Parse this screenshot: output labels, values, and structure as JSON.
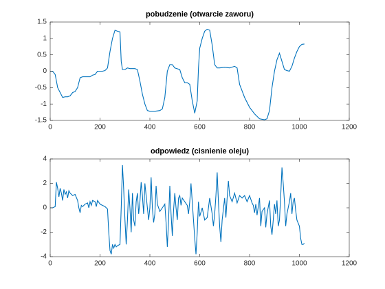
{
  "chart_data": [
    {
      "type": "line",
      "title": "pobudzenie (otwarcie zaworu)",
      "color": "#0072bd",
      "xlim": [
        0,
        1200
      ],
      "ylim": [
        -1.5,
        1.5
      ],
      "xticks": [
        0,
        200,
        400,
        600,
        800,
        1000,
        1200
      ],
      "yticks": [
        -1.5,
        -1,
        -0.5,
        0,
        0.5,
        1,
        1.5
      ],
      "x": [
        0,
        10,
        20,
        30,
        40,
        50,
        60,
        70,
        80,
        90,
        100,
        110,
        120,
        130,
        140,
        160,
        170,
        180,
        190,
        200,
        210,
        220,
        230,
        240,
        250,
        260,
        270,
        280,
        285,
        290,
        300,
        310,
        320,
        340,
        350,
        360,
        370,
        380,
        390,
        400,
        420,
        440,
        450,
        460,
        470,
        480,
        490,
        500,
        520,
        530,
        540,
        550,
        560,
        570,
        580,
        590,
        595,
        600,
        610,
        620,
        630,
        640,
        650,
        660,
        670,
        680,
        700,
        720,
        740,
        750,
        760,
        780,
        800,
        820,
        840,
        860,
        870,
        880,
        890,
        900,
        910,
        920,
        930,
        940,
        950,
        960,
        970,
        980,
        990,
        1000,
        1010,
        1020
      ],
      "values": [
        0,
        0,
        -0.1,
        -0.5,
        -0.65,
        -0.8,
        -0.78,
        -0.78,
        -0.75,
        -0.65,
        -0.62,
        -0.5,
        -0.2,
        -0.17,
        -0.17,
        -0.17,
        -0.12,
        -0.1,
        0,
        0,
        0,
        0.02,
        0.1,
        0.6,
        1,
        1.25,
        1.22,
        1.2,
        0.3,
        0.05,
        0.05,
        0.1,
        0.08,
        0.08,
        0.05,
        -0.3,
        -0.7,
        -1,
        -1.2,
        -1.22,
        -1.22,
        -1.2,
        -1.15,
        -0.8,
        0,
        0.2,
        0.2,
        0.1,
        0.05,
        -0.2,
        -0.35,
        -0.35,
        -0.4,
        -0.9,
        -1.28,
        -0.9,
        0.1,
        0.7,
        1,
        1.22,
        1.28,
        1.25,
        0.8,
        0.2,
        0.1,
        0.1,
        0.12,
        0.1,
        0.15,
        0.1,
        -0.4,
        -0.8,
        -1.1,
        -1.3,
        -1.45,
        -1.48,
        -1.45,
        -1.2,
        -0.5,
        0,
        0.35,
        0.55,
        0.3,
        0.05,
        0.02,
        0,
        0.15,
        0.4,
        0.6,
        0.75,
        0.82,
        0.83
      ]
    },
    {
      "type": "line",
      "title": "odpowiedz (cisnienie oleju)",
      "color": "#0072bd",
      "xlim": [
        0,
        1200
      ],
      "ylim": [
        -4,
        4
      ],
      "xticks": [
        0,
        200,
        400,
        600,
        800,
        1000,
        1200
      ],
      "yticks": [
        -4,
        -2,
        0,
        2,
        4
      ],
      "x": [
        0,
        10,
        20,
        25,
        30,
        35,
        40,
        45,
        50,
        55,
        60,
        65,
        70,
        75,
        80,
        90,
        100,
        110,
        115,
        120,
        125,
        130,
        140,
        150,
        155,
        160,
        165,
        170,
        180,
        185,
        190,
        200,
        210,
        220,
        230,
        235,
        240,
        245,
        250,
        255,
        260,
        265,
        270,
        280,
        285,
        290,
        295,
        300,
        305,
        310,
        315,
        320,
        325,
        330,
        335,
        340,
        345,
        350,
        355,
        360,
        365,
        370,
        375,
        380,
        385,
        390,
        395,
        400,
        405,
        410,
        415,
        420,
        425,
        430,
        440,
        450,
        460,
        465,
        470,
        475,
        480,
        485,
        490,
        495,
        500,
        505,
        510,
        515,
        520,
        525,
        530,
        540,
        550,
        555,
        560,
        565,
        570,
        580,
        585,
        590,
        595,
        600,
        610,
        620,
        630,
        640,
        650,
        655,
        660,
        665,
        670,
        675,
        680,
        685,
        690,
        700,
        705,
        710,
        715,
        720,
        730,
        740,
        750,
        760,
        770,
        780,
        790,
        800,
        810,
        815,
        820,
        825,
        830,
        840,
        845,
        850,
        860,
        865,
        870,
        880,
        885,
        890,
        895,
        900,
        905,
        910,
        915,
        920,
        925,
        930,
        935,
        940,
        945,
        950,
        960,
        965,
        970,
        975,
        980,
        985,
        990,
        1000,
        1005,
        1010,
        1015,
        1020
      ],
      "values": [
        0,
        0,
        0.1,
        2.1,
        1.6,
        0.9,
        1.6,
        1.2,
        0.6,
        1.5,
        1.1,
        1.3,
        0.8,
        1.4,
        1.2,
        1,
        1.1,
        0.6,
        0,
        -0.4,
        0.2,
        0.1,
        0.3,
        0.4,
        0,
        0.5,
        0.2,
        0.6,
        0.5,
        0.1,
        0.6,
        0.3,
        0.2,
        0.1,
        -0.1,
        -2,
        -3.5,
        -3.8,
        -3,
        -3.3,
        -3,
        -3.2,
        -3.1,
        -3,
        0,
        3.5,
        1.5,
        -1,
        -3,
        -1,
        1.5,
        0,
        -2,
        1.2,
        -1,
        -1.5,
        0.5,
        1.2,
        -0.5,
        0.5,
        2.1,
        1,
        -0.5,
        2,
        1,
        0,
        -1,
        0,
        2.5,
        0,
        -1.2,
        -0.5,
        1.8,
        0.3,
        -0.3,
        0,
        0.3,
        -1.2,
        -3.2,
        -1,
        1.8,
        -0.5,
        -2.3,
        -0.2,
        1.2,
        0,
        -1,
        0.8,
        1,
        0.2,
        0.8,
        0.5,
        0.2,
        -0.5,
        0.5,
        2,
        0.5,
        -2.5,
        -3.8,
        -2,
        0.5,
        -0.7,
        0,
        -1,
        -0.8,
        0.8,
        -0.5,
        -1.5,
        -0.5,
        1,
        2.9,
        0.5,
        -1.5,
        -2.8,
        -1,
        0.8,
        -0.8,
        0.8,
        2.2,
        1,
        0.5,
        1.2,
        0.4,
        1,
        0.8,
        1,
        0.5,
        1,
        0.4,
        0.2,
        -0.4,
        0.3,
        -0.6,
        0.8,
        -1.5,
        -0.3,
        0,
        -1.6,
        -0.5,
        0.6,
        -1.5,
        -2.2,
        -1,
        0.3,
        -0.5,
        0.6,
        -1.5,
        -1,
        1,
        3.3,
        2,
        0.5,
        -1.5,
        -0.5,
        0.5,
        1.2,
        -0.5,
        0.5,
        0.8,
        -0.2,
        -1,
        -1.5,
        -2.5,
        -3,
        -3,
        -2.9
      ]
    }
  ]
}
